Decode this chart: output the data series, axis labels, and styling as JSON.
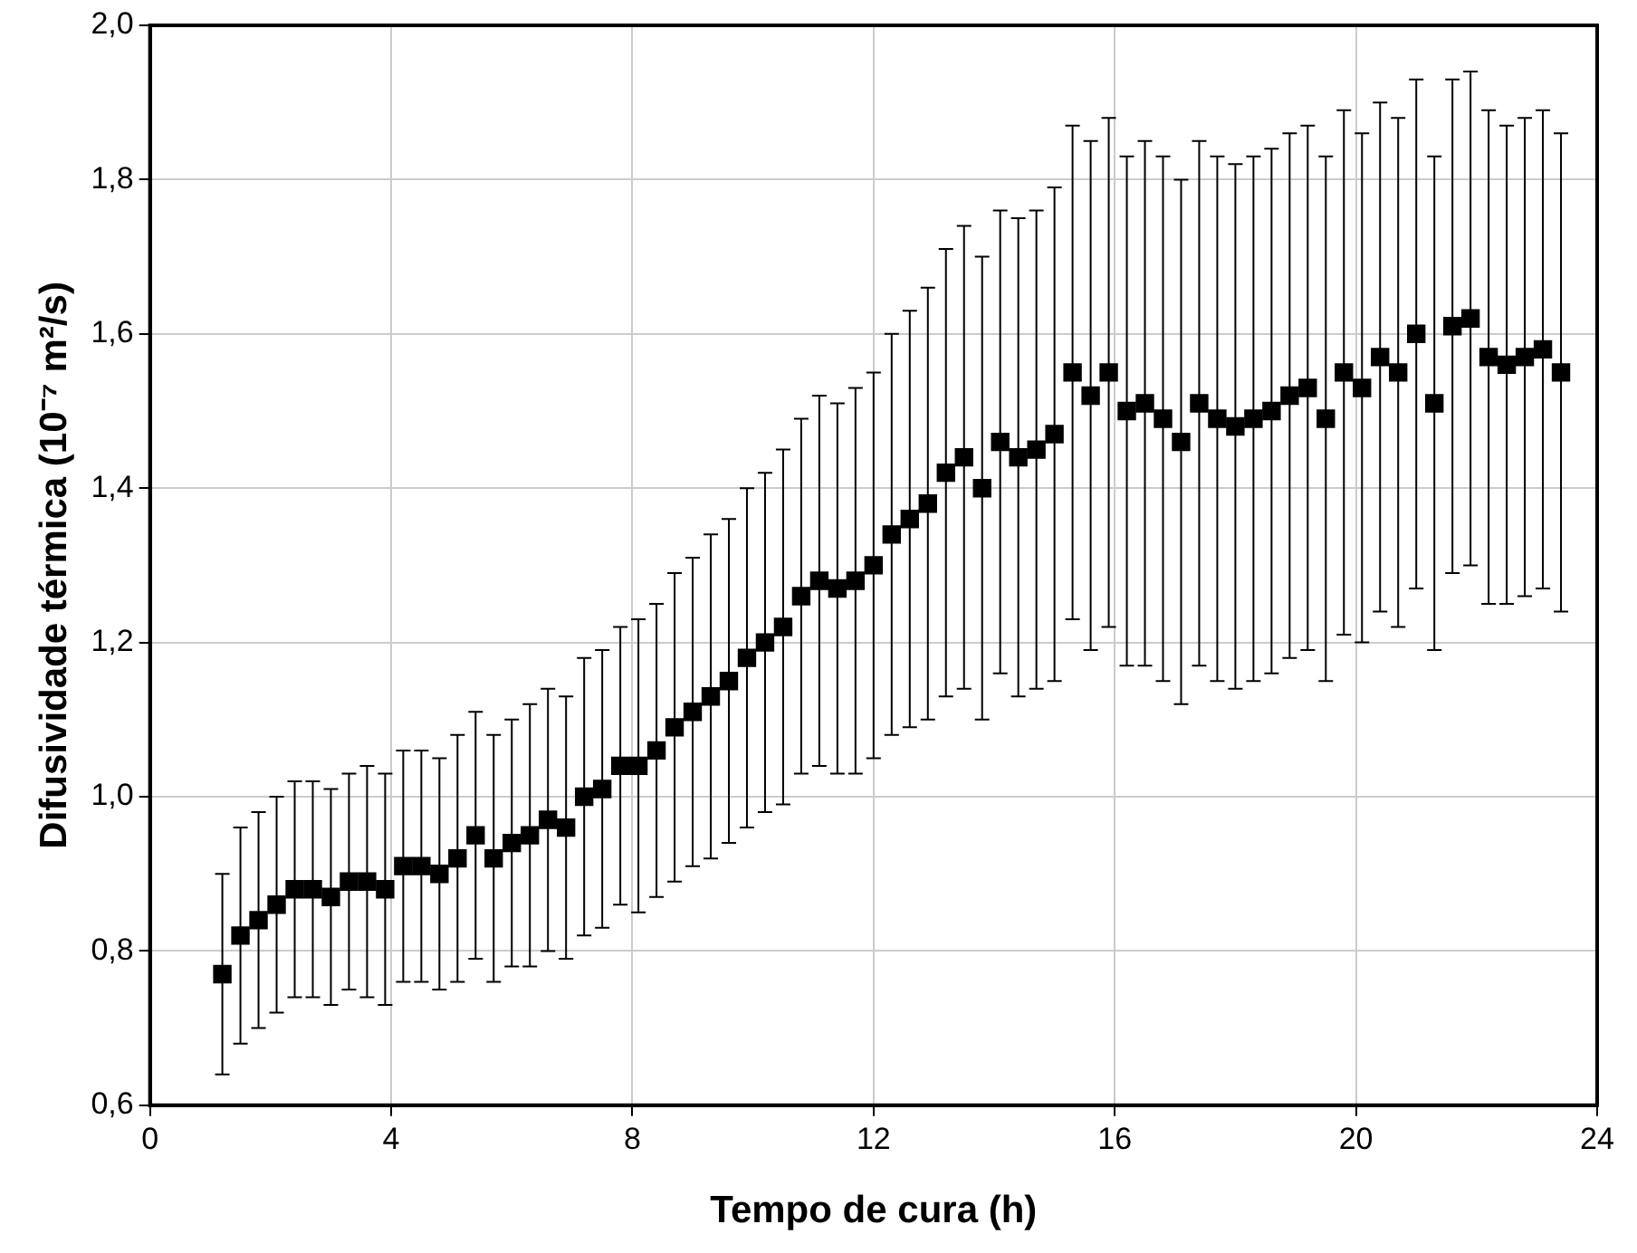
{
  "chart_data": {
    "type": "scatter",
    "xlabel": "Tempo de cura (h)",
    "ylabel": "Difusividade térmica (10⁻⁷ m²/s)",
    "xlim": [
      0,
      24
    ],
    "xticks": [
      0,
      4,
      8,
      12,
      16,
      20,
      24
    ],
    "ylim": [
      0.6,
      2.0
    ],
    "yticks": [
      {
        "value": 0.6,
        "label": "0,6"
      },
      {
        "value": 0.8,
        "label": "0,8"
      },
      {
        "value": 1.0,
        "label": "1,0"
      },
      {
        "value": 1.2,
        "label": "1,2"
      },
      {
        "value": 1.4,
        "label": "1,4"
      },
      {
        "value": 1.6,
        "label": "1,6"
      },
      {
        "value": 1.8,
        "label": "1,8"
      },
      {
        "value": 2.0,
        "label": "2,0"
      }
    ],
    "grid": true,
    "legend": false,
    "marker": "square",
    "series": [
      {
        "color": "#000000",
        "x": [
          1.2,
          1.5,
          1.8,
          2.1,
          2.4,
          2.7,
          3.0,
          3.3,
          3.6,
          3.9,
          4.2,
          4.5,
          4.8,
          5.1,
          5.4,
          5.7,
          6.0,
          6.3,
          6.6,
          6.9,
          7.2,
          7.5,
          7.8,
          8.1,
          8.4,
          8.7,
          9.0,
          9.3,
          9.6,
          9.9,
          10.2,
          10.5,
          10.8,
          11.1,
          11.4,
          11.7,
          12.0,
          12.3,
          12.6,
          12.9,
          13.2,
          13.5,
          13.8,
          14.1,
          14.4,
          14.7,
          15.0,
          15.3,
          15.6,
          15.9,
          16.2,
          16.5,
          16.8,
          17.1,
          17.4,
          17.7,
          18.0,
          18.3,
          18.6,
          18.9,
          19.2,
          19.5,
          19.8,
          20.1,
          20.4,
          20.7,
          21.0,
          21.3,
          21.6,
          21.9,
          22.2,
          22.5,
          22.8,
          23.1,
          23.4
        ],
        "values": [
          0.77,
          0.82,
          0.84,
          0.86,
          0.88,
          0.88,
          0.87,
          0.89,
          0.89,
          0.88,
          0.91,
          0.91,
          0.9,
          0.92,
          0.95,
          0.92,
          0.94,
          0.95,
          0.97,
          0.96,
          1.0,
          1.01,
          1.04,
          1.04,
          1.06,
          1.09,
          1.11,
          1.13,
          1.15,
          1.18,
          1.2,
          1.22,
          1.26,
          1.28,
          1.27,
          1.28,
          1.3,
          1.34,
          1.36,
          1.38,
          1.42,
          1.44,
          1.4,
          1.46,
          1.44,
          1.45,
          1.47,
          1.55,
          1.52,
          1.55,
          1.5,
          1.51,
          1.49,
          1.46,
          1.51,
          1.49,
          1.48,
          1.49,
          1.5,
          1.52,
          1.53,
          1.49,
          1.55,
          1.53,
          1.57,
          1.55,
          1.6,
          1.51,
          1.61,
          1.62,
          1.57,
          1.56,
          1.57,
          1.58,
          1.55
        ],
        "errors": [
          0.13,
          0.14,
          0.14,
          0.14,
          0.14,
          0.14,
          0.14,
          0.14,
          0.15,
          0.15,
          0.15,
          0.15,
          0.15,
          0.16,
          0.16,
          0.16,
          0.16,
          0.17,
          0.17,
          0.17,
          0.18,
          0.18,
          0.18,
          0.19,
          0.19,
          0.2,
          0.2,
          0.21,
          0.21,
          0.22,
          0.22,
          0.23,
          0.23,
          0.24,
          0.24,
          0.25,
          0.25,
          0.26,
          0.27,
          0.28,
          0.29,
          0.3,
          0.3,
          0.3,
          0.31,
          0.31,
          0.32,
          0.32,
          0.33,
          0.33,
          0.33,
          0.34,
          0.34,
          0.34,
          0.34,
          0.34,
          0.34,
          0.34,
          0.34,
          0.34,
          0.34,
          0.34,
          0.34,
          0.33,
          0.33,
          0.33,
          0.33,
          0.32,
          0.32,
          0.32,
          0.32,
          0.31,
          0.31,
          0.31,
          0.31
        ]
      }
    ]
  }
}
